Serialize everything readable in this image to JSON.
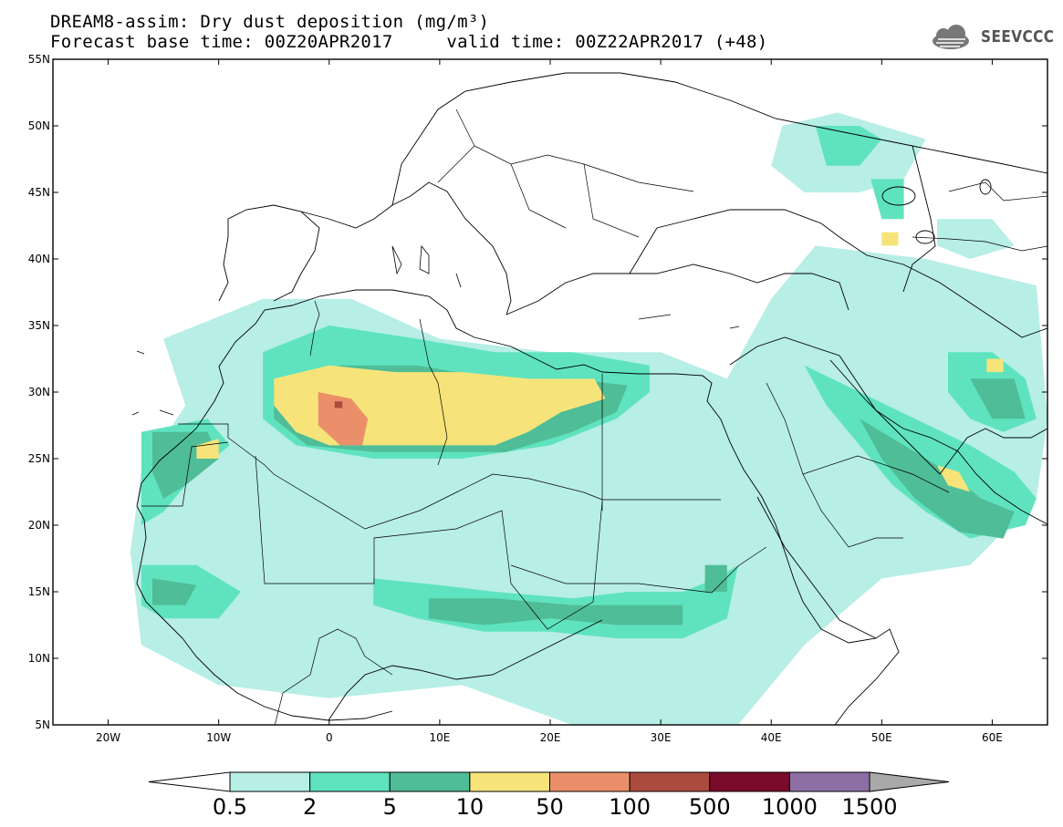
{
  "header": {
    "title_line1": "DREAM8-assim: Dry dust deposition (mg/m³)",
    "title_line2": "Forecast base time: 00Z20APR2017     valid time: 00Z22APR2017 (+48)",
    "logo_text": "SEEVCCC"
  },
  "map": {
    "extent": {
      "lon_min": -25,
      "lon_max": 65,
      "lat_min": 5,
      "lat_max": 55
    },
    "lat_ticks": [
      {
        "value": 55,
        "label": "55N"
      },
      {
        "value": 50,
        "label": "50N"
      },
      {
        "value": 45,
        "label": "45N"
      },
      {
        "value": 40,
        "label": "40N"
      },
      {
        "value": 35,
        "label": "35N"
      },
      {
        "value": 30,
        "label": "30N"
      },
      {
        "value": 25,
        "label": "25N"
      },
      {
        "value": 20,
        "label": "20N"
      },
      {
        "value": 15,
        "label": "15N"
      },
      {
        "value": 10,
        "label": "10N"
      },
      {
        "value": 5,
        "label": "5N"
      }
    ],
    "lon_ticks": [
      {
        "value": -20,
        "label": "20W"
      },
      {
        "value": -10,
        "label": "10W"
      },
      {
        "value": 0,
        "label": "0"
      },
      {
        "value": 10,
        "label": "10E"
      },
      {
        "value": 20,
        "label": "20E"
      },
      {
        "value": 30,
        "label": "30E"
      },
      {
        "value": 40,
        "label": "40E"
      },
      {
        "value": 50,
        "label": "50E"
      },
      {
        "value": 60,
        "label": "60E"
      }
    ],
    "dust_regions": [
      {
        "level": 0,
        "points": [
          [
            -15,
            34
          ],
          [
            -6,
            37
          ],
          [
            2,
            37
          ],
          [
            10,
            34
          ],
          [
            20,
            33
          ],
          [
            30,
            33
          ],
          [
            36,
            31
          ],
          [
            40,
            37
          ],
          [
            44,
            41
          ],
          [
            54,
            40
          ],
          [
            64,
            38
          ],
          [
            65,
            28
          ],
          [
            64,
            22
          ],
          [
            58,
            17
          ],
          [
            50,
            16
          ],
          [
            43,
            11
          ],
          [
            40,
            8
          ],
          [
            37,
            5
          ],
          [
            30,
            5
          ],
          [
            22,
            5
          ],
          [
            12,
            8
          ],
          [
            0,
            7
          ],
          [
            -10,
            8
          ],
          [
            -17,
            11
          ],
          [
            -18,
            18
          ],
          [
            -17,
            24
          ],
          [
            -13,
            29
          ]
        ]
      },
      {
        "level": 0,
        "points": [
          [
            41,
            50
          ],
          [
            46,
            51
          ],
          [
            50,
            50
          ],
          [
            54,
            49
          ],
          [
            52,
            46
          ],
          [
            48,
            45
          ],
          [
            43,
            45
          ],
          [
            40,
            47
          ]
        ]
      },
      {
        "level": 0,
        "points": [
          [
            55,
            43
          ],
          [
            60,
            43
          ],
          [
            62,
            41
          ],
          [
            58,
            40
          ],
          [
            55,
            41
          ]
        ]
      },
      {
        "level": 1,
        "points": [
          [
            -6,
            33
          ],
          [
            0,
            35
          ],
          [
            8,
            34
          ],
          [
            15,
            33
          ],
          [
            22,
            33
          ],
          [
            29,
            32
          ],
          [
            29,
            30
          ],
          [
            26,
            28
          ],
          [
            20,
            26
          ],
          [
            12,
            25
          ],
          [
            4,
            25
          ],
          [
            -3,
            26
          ],
          [
            -6,
            28
          ]
        ]
      },
      {
        "level": 1,
        "points": [
          [
            -17,
            27
          ],
          [
            -11,
            28
          ],
          [
            -9,
            26
          ],
          [
            -12,
            24
          ],
          [
            -15,
            21
          ],
          [
            -17,
            20
          ],
          [
            -17,
            23
          ]
        ]
      },
      {
        "level": 1,
        "points": [
          [
            -17,
            17
          ],
          [
            -12,
            17
          ],
          [
            -8,
            15
          ],
          [
            -10,
            13
          ],
          [
            -15,
            13
          ],
          [
            -17,
            14
          ]
        ]
      },
      {
        "level": 1,
        "points": [
          [
            4,
            16
          ],
          [
            10,
            15.5
          ],
          [
            15,
            15
          ],
          [
            22,
            14.5
          ],
          [
            27,
            15
          ],
          [
            32,
            15
          ],
          [
            35,
            16
          ],
          [
            37,
            17
          ],
          [
            36,
            13
          ],
          [
            32,
            11.5
          ],
          [
            26,
            11.5
          ],
          [
            20,
            12
          ],
          [
            14,
            12
          ],
          [
            8,
            13
          ],
          [
            4,
            14
          ]
        ]
      },
      {
        "level": 1,
        "points": [
          [
            43,
            32
          ],
          [
            48,
            30
          ],
          [
            53,
            28
          ],
          [
            58,
            26
          ],
          [
            62,
            24
          ],
          [
            64,
            22
          ],
          [
            63,
            20
          ],
          [
            58,
            19
          ],
          [
            54,
            21
          ],
          [
            51,
            23
          ],
          [
            48,
            26
          ],
          [
            45,
            29
          ]
        ]
      },
      {
        "level": 1,
        "points": [
          [
            56,
            33
          ],
          [
            60,
            33
          ],
          [
            63,
            31
          ],
          [
            64,
            28
          ],
          [
            61,
            27
          ],
          [
            58,
            28
          ],
          [
            56,
            30
          ]
        ]
      },
      {
        "level": 1,
        "points": [
          [
            44,
            50
          ],
          [
            48,
            50
          ],
          [
            50,
            49
          ],
          [
            48,
            47
          ],
          [
            45,
            47
          ]
        ]
      },
      {
        "level": 1,
        "points": [
          [
            49,
            46
          ],
          [
            52,
            46
          ],
          [
            52,
            43
          ],
          [
            50,
            43
          ]
        ]
      },
      {
        "level": 2,
        "points": [
          [
            -5,
            31
          ],
          [
            1,
            32
          ],
          [
            8,
            32
          ],
          [
            15,
            31
          ],
          [
            22,
            31
          ],
          [
            27,
            30.5
          ],
          [
            26,
            28.5
          ],
          [
            22,
            27
          ],
          [
            16,
            25.5
          ],
          [
            10,
            25.5
          ],
          [
            4,
            25.5
          ],
          [
            -2,
            26
          ],
          [
            -5,
            28
          ]
        ]
      },
      {
        "level": 2,
        "points": [
          [
            -16,
            27
          ],
          [
            -11,
            27
          ],
          [
            -10,
            25
          ],
          [
            -13,
            23
          ],
          [
            -15,
            22
          ],
          [
            -16,
            24
          ]
        ]
      },
      {
        "level": 2,
        "points": [
          [
            -16,
            16
          ],
          [
            -12,
            15.5
          ],
          [
            -13,
            14
          ],
          [
            -16,
            14
          ]
        ]
      },
      {
        "level": 2,
        "points": [
          [
            9,
            14.5
          ],
          [
            15,
            14.5
          ],
          [
            22,
            14
          ],
          [
            27,
            14
          ],
          [
            32,
            14
          ],
          [
            32,
            12.5
          ],
          [
            26,
            12.5
          ],
          [
            20,
            13
          ],
          [
            14,
            12.5
          ],
          [
            9,
            13
          ]
        ]
      },
      {
        "level": 2,
        "points": [
          [
            34,
            17
          ],
          [
            36,
            17
          ],
          [
            36,
            15
          ],
          [
            34,
            15
          ]
        ]
      },
      {
        "level": 2,
        "points": [
          [
            48,
            28
          ],
          [
            52,
            26
          ],
          [
            56,
            24
          ],
          [
            59,
            22
          ],
          [
            62,
            21
          ],
          [
            61,
            19
          ],
          [
            57,
            19.5
          ],
          [
            53,
            22
          ],
          [
            50,
            25
          ]
        ]
      },
      {
        "level": 2,
        "points": [
          [
            58,
            31
          ],
          [
            62,
            31
          ],
          [
            63,
            28
          ],
          [
            60,
            28
          ]
        ]
      },
      {
        "level": 3,
        "points": [
          [
            -5,
            31
          ],
          [
            0,
            32
          ],
          [
            6,
            31.5
          ],
          [
            12,
            31.5
          ],
          [
            18,
            31
          ],
          [
            24,
            31
          ],
          [
            25,
            29.5
          ],
          [
            21,
            28.5
          ],
          [
            18,
            27
          ],
          [
            15,
            26
          ],
          [
            10,
            26
          ],
          [
            5,
            26
          ],
          [
            0,
            26
          ],
          [
            -3,
            27
          ],
          [
            -5,
            29
          ]
        ]
      },
      {
        "level": 3,
        "points": [
          [
            -12,
            26
          ],
          [
            -10,
            26.5
          ],
          [
            -10,
            25
          ],
          [
            -12,
            25
          ]
        ]
      },
      {
        "level": 3,
        "points": [
          [
            55,
            24.5
          ],
          [
            57,
            24
          ],
          [
            58,
            22.5
          ],
          [
            56,
            23
          ]
        ]
      },
      {
        "level": 3,
        "points": [
          [
            59.5,
            32.5
          ],
          [
            61,
            32.5
          ],
          [
            61,
            31.5
          ],
          [
            59.5,
            31.5
          ]
        ]
      },
      {
        "level": 3,
        "points": [
          [
            50,
            42
          ],
          [
            51.5,
            42
          ],
          [
            51.5,
            41
          ],
          [
            50,
            41
          ]
        ]
      },
      {
        "level": 4,
        "points": [
          [
            -1,
            30
          ],
          [
            2,
            29.5
          ],
          [
            3.5,
            28
          ],
          [
            3,
            26
          ],
          [
            1,
            26
          ],
          [
            -1,
            27.5
          ]
        ]
      },
      {
        "level": 5,
        "points": [
          [
            0.5,
            29.3
          ],
          [
            1.2,
            29.3
          ],
          [
            1.2,
            28.8
          ],
          [
            0.5,
            28.8
          ]
        ]
      }
    ]
  },
  "colorbar": {
    "colors": [
      "#b7eee6",
      "#5fe3bf",
      "#4fbd97",
      "#f6e47a",
      "#eb8f6b",
      "#ab4b3e",
      "#7a0b2a",
      "#8d6fa3",
      "#a9a9a9"
    ],
    "labels": [
      "0.5",
      "2",
      "5",
      "10",
      "50",
      "100",
      "500",
      "1000",
      "1500"
    ]
  }
}
